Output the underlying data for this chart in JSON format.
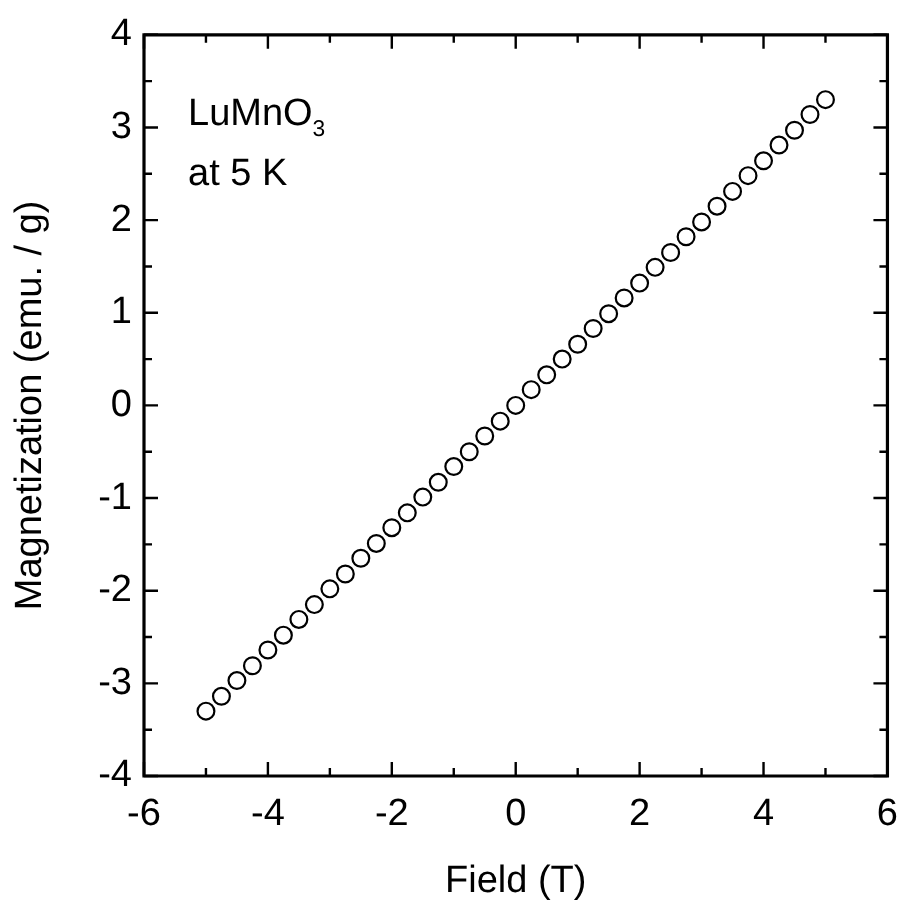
{
  "chart_data": {
    "type": "scatter",
    "xlabel": "Field (T)",
    "ylabel": "Magnetization (emu. / g)",
    "annotations": [
      "LuMnO$_{3}$",
      "at 5 K"
    ],
    "x": [
      -5,
      -4.75,
      -4.5,
      -4.25,
      -4,
      -3.75,
      -3.5,
      -3.25,
      -3,
      -2.75,
      -2.5,
      -2.25,
      -2,
      -1.75,
      -1.5,
      -1.25,
      -1,
      -0.75,
      -0.5,
      -0.25,
      0,
      0.25,
      0.5,
      0.75,
      1,
      1.25,
      1.5,
      1.75,
      2,
      2.25,
      2.5,
      2.75,
      3,
      3.25,
      3.5,
      3.75,
      4,
      4.25,
      4.5,
      4.75,
      5
    ],
    "series": [
      {
        "color": "#000000",
        "values": [
          -3.3,
          -3.14,
          -2.97,
          -2.81,
          -2.64,
          -2.48,
          -2.31,
          -2.15,
          -1.98,
          -1.82,
          -1.65,
          -1.49,
          -1.32,
          -1.16,
          -0.99,
          -0.83,
          -0.66,
          -0.5,
          -0.33,
          -0.17,
          0,
          0.17,
          0.33,
          0.5,
          0.66,
          0.83,
          0.99,
          1.16,
          1.32,
          1.49,
          1.65,
          1.82,
          1.98,
          2.15,
          2.31,
          2.48,
          2.64,
          2.81,
          2.97,
          3.14,
          3.3
        ]
      }
    ],
    "xlim": [
      -6,
      6
    ],
    "xticks": [
      -6,
      {
        "value": -5,
        "label": null
      },
      -4,
      {
        "value": -3,
        "label": null
      },
      -2,
      {
        "value": -1,
        "label": null
      },
      0,
      {
        "value": 1,
        "label": null
      },
      2,
      {
        "value": 3,
        "label": null
      },
      4,
      {
        "value": 5,
        "label": null
      },
      6
    ],
    "ylim": [
      -4,
      4
    ],
    "yticks": [
      -4,
      {
        "value": -3.5,
        "label": null
      },
      -3,
      {
        "value": -2.5,
        "label": null
      },
      -2,
      {
        "value": -1.5,
        "label": null
      },
      -1,
      {
        "value": -0.5,
        "label": null
      },
      0,
      {
        "value": 0.5,
        "label": null
      },
      1,
      {
        "value": 1.5,
        "label": null
      },
      2,
      {
        "value": 2.5,
        "label": null
      },
      3,
      {
        "value": 3.5,
        "label": null
      },
      4
    ],
    "marker": "circle",
    "grid": false,
    "legend": false
  }
}
